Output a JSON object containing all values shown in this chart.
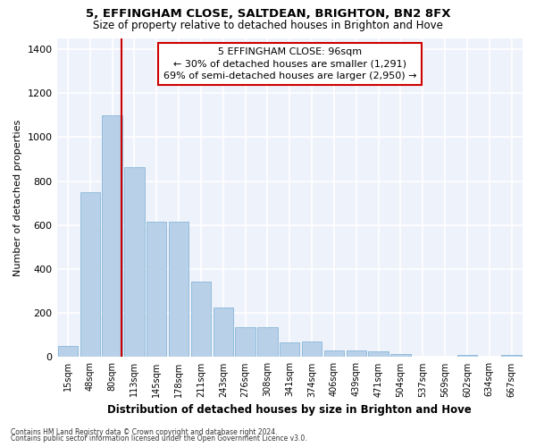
{
  "title1": "5, EFFINGHAM CLOSE, SALTDEAN, BRIGHTON, BN2 8FX",
  "title2": "Size of property relative to detached houses in Brighton and Hove",
  "xlabel": "Distribution of detached houses by size in Brighton and Hove",
  "ylabel": "Number of detached properties",
  "categories": [
    "15sqm",
    "48sqm",
    "80sqm",
    "113sqm",
    "145sqm",
    "178sqm",
    "211sqm",
    "243sqm",
    "276sqm",
    "308sqm",
    "341sqm",
    "374sqm",
    "406sqm",
    "439sqm",
    "471sqm",
    "504sqm",
    "537sqm",
    "569sqm",
    "602sqm",
    "634sqm",
    "667sqm"
  ],
  "values": [
    50,
    750,
    1100,
    865,
    615,
    615,
    345,
    225,
    135,
    135,
    65,
    70,
    30,
    30,
    25,
    15,
    0,
    0,
    10,
    0,
    10
  ],
  "bar_color": "#b8d0e8",
  "bar_edge_color": "#7aafd4",
  "annotation_text_line1": "5 EFFINGHAM CLOSE: 96sqm",
  "annotation_text_line2": "← 30% of detached houses are smaller (1,291)",
  "annotation_text_line3": "69% of semi-detached houses are larger (2,950) →",
  "annotation_box_color": "#ffffff",
  "annotation_box_edge_color": "#cc0000",
  "vline_color": "#cc0000",
  "vline_x": 2.4,
  "ylim": [
    0,
    1450
  ],
  "background_color": "#eef2fb",
  "grid_color": "#ffffff",
  "footnote1": "Contains HM Land Registry data © Crown copyright and database right 2024.",
  "footnote2": "Contains public sector information licensed under the Open Government Licence v3.0."
}
